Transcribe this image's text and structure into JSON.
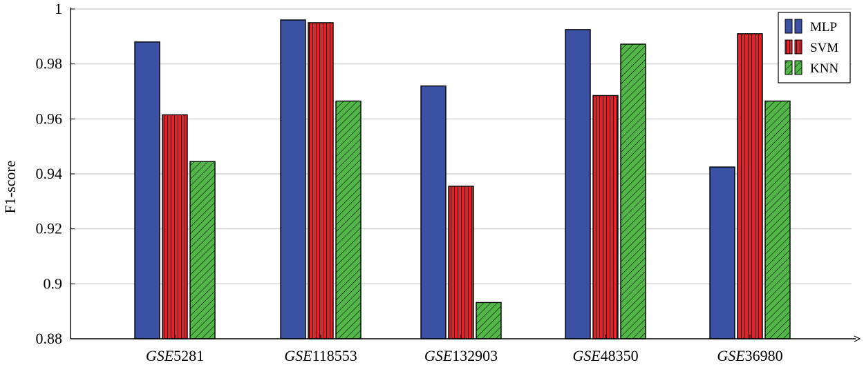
{
  "chart_data": {
    "type": "bar",
    "title": "",
    "xlabel": "",
    "ylabel": "F1-score",
    "ylim": [
      0.88,
      1.0
    ],
    "yticks": [
      0.88,
      0.9,
      0.92,
      0.94,
      0.96,
      0.98,
      1
    ],
    "ytick_labels": [
      "0.88",
      "0.9",
      "0.92",
      "0.94",
      "0.96",
      "0.98",
      "1"
    ],
    "grid": "horizontal",
    "legend_position": "top-right",
    "categories": [
      {
        "prefix": "GSE",
        "number": "5281"
      },
      {
        "prefix": "GSE",
        "number": "118553"
      },
      {
        "prefix": "GSE",
        "number": "132903"
      },
      {
        "prefix": "GSE",
        "number": "48350"
      },
      {
        "prefix": "GSE",
        "number": "36980"
      }
    ],
    "series": [
      {
        "name": "MLP",
        "color": "#3b51a3",
        "pattern": "solid",
        "values": [
          0.988,
          0.996,
          0.972,
          0.9925,
          0.9425
        ]
      },
      {
        "name": "SVM",
        "color": "#e8202a",
        "pattern": "vertical-lines",
        "values": [
          0.9615,
          0.995,
          0.9355,
          0.9685,
          0.991
        ]
      },
      {
        "name": "KNN",
        "color": "#52b748",
        "pattern": "diagonal-lines",
        "values": [
          0.9445,
          0.9665,
          0.8932,
          0.9872,
          0.9665
        ]
      }
    ]
  }
}
